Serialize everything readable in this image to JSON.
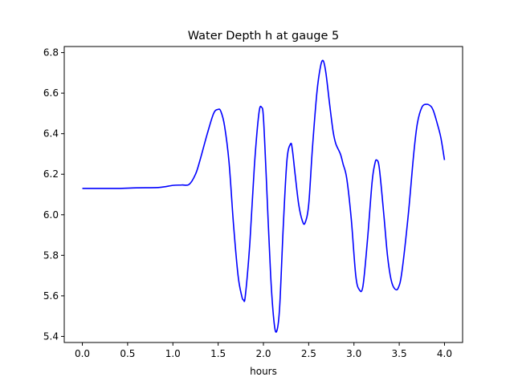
{
  "chart_data": {
    "type": "line",
    "title": "Water Depth h at gauge 5",
    "xlabel": "hours",
    "ylabel": "",
    "xlim": [
      -0.2,
      4.2
    ],
    "ylim": [
      5.37,
      6.83
    ],
    "xticks": [
      0.0,
      0.5,
      1.0,
      1.5,
      2.0,
      2.5,
      3.0,
      3.5,
      4.0
    ],
    "xtick_labels": [
      "0.0",
      "0.5",
      "1.0",
      "1.5",
      "2.0",
      "2.5",
      "3.0",
      "3.5",
      "4.0"
    ],
    "yticks": [
      5.4,
      5.6,
      5.8,
      6.0,
      6.2,
      6.4,
      6.6,
      6.8
    ],
    "ytick_labels": [
      "5.4",
      "5.6",
      "5.8",
      "6.0",
      "6.2",
      "6.4",
      "6.6",
      "6.8"
    ],
    "grid": false,
    "series": [
      {
        "color": "#0000ff",
        "x": [
          0.0,
          0.2,
          0.4,
          0.6,
          0.85,
          1.0,
          1.1,
          1.18,
          1.25,
          1.3,
          1.38,
          1.45,
          1.5,
          1.53,
          1.57,
          1.62,
          1.67,
          1.72,
          1.76,
          1.78,
          1.8,
          1.85,
          1.9,
          1.95,
          1.98,
          2.0,
          2.03,
          2.08,
          2.12,
          2.15,
          2.18,
          2.22,
          2.26,
          2.3,
          2.32,
          2.35,
          2.39,
          2.43,
          2.46,
          2.5,
          2.54,
          2.59,
          2.63,
          2.66,
          2.69,
          2.73,
          2.77,
          2.8,
          2.85,
          2.88,
          2.92,
          2.97,
          3.02,
          3.06,
          3.1,
          3.15,
          3.2,
          3.23,
          3.25,
          3.28,
          3.33,
          3.37,
          3.41,
          3.45,
          3.49,
          3.53,
          3.6,
          3.66,
          3.7,
          3.75,
          3.8,
          3.85,
          3.88,
          3.92,
          3.96,
          4.0
        ],
        "y": [
          6.13,
          6.13,
          6.13,
          6.133,
          6.135,
          6.145,
          6.147,
          6.15,
          6.2,
          6.27,
          6.4,
          6.5,
          6.52,
          6.51,
          6.44,
          6.26,
          5.95,
          5.7,
          5.6,
          5.58,
          5.6,
          5.86,
          6.24,
          6.5,
          6.53,
          6.48,
          6.2,
          5.7,
          5.46,
          5.43,
          5.55,
          5.95,
          6.27,
          6.35,
          6.32,
          6.2,
          6.05,
          5.97,
          5.96,
          6.05,
          6.32,
          6.6,
          6.73,
          6.76,
          6.7,
          6.55,
          6.41,
          6.35,
          6.3,
          6.25,
          6.18,
          5.98,
          5.7,
          5.63,
          5.65,
          5.88,
          6.16,
          6.25,
          6.27,
          6.23,
          6.0,
          5.8,
          5.68,
          5.635,
          5.64,
          5.72,
          6.0,
          6.3,
          6.45,
          6.53,
          6.545,
          6.535,
          6.51,
          6.45,
          6.38,
          6.27
        ]
      }
    ]
  }
}
